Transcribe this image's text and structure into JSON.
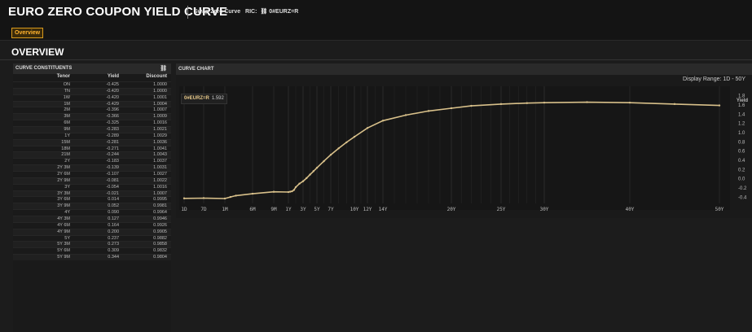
{
  "header": {
    "title": "EURO ZERO COUPON YIELD CURVE",
    "subtitle_prefix": "Swap Zero Curve",
    "ric_label": "RIC:",
    "ric_value": "0#EURZ=R"
  },
  "tabs": [
    {
      "label": "Overview",
      "active": true
    }
  ],
  "section_title": "OVERVIEW",
  "constituents": {
    "title": "CURVE CONSTITUENTS",
    "columns": [
      "Tenor",
      "Yield",
      "Discount"
    ],
    "rows": [
      [
        "ON",
        "-0.425",
        "1.0000"
      ],
      [
        "TN",
        "-0.420",
        "1.0000"
      ],
      [
        "1W",
        "-0.420",
        "1.0001"
      ],
      [
        "1M",
        "-0.429",
        "1.0004"
      ],
      [
        "2M",
        "-0.396",
        "1.0007"
      ],
      [
        "3M",
        "-0.366",
        "1.0009"
      ],
      [
        "6M",
        "-0.325",
        "1.0016"
      ],
      [
        "9M",
        "-0.283",
        "1.0021"
      ],
      [
        "1Y",
        "-0.289",
        "1.0029"
      ],
      [
        "15M",
        "-0.281",
        "1.0036"
      ],
      [
        "18M",
        "-0.271",
        "1.0041"
      ],
      [
        "21M",
        "-0.244",
        "1.0043"
      ],
      [
        "2Y",
        "-0.183",
        "1.0037"
      ],
      [
        "2Y 3M",
        "-0.139",
        "1.0031"
      ],
      [
        "2Y 6M",
        "-0.107",
        "1.0027"
      ],
      [
        "2Y 9M",
        "-0.081",
        "1.0022"
      ],
      [
        "3Y",
        "-0.054",
        "1.0016"
      ],
      [
        "3Y 3M",
        "-0.021",
        "1.0007"
      ],
      [
        "3Y 6M",
        "0.014",
        "0.9995"
      ],
      [
        "3Y 9M",
        "0.052",
        "0.9981"
      ],
      [
        "4Y",
        "0.090",
        "0.9964"
      ],
      [
        "4Y 3M",
        "0.127",
        "0.9946"
      ],
      [
        "4Y 6M",
        "0.164",
        "0.9926"
      ],
      [
        "4Y 9M",
        "0.200",
        "0.9905"
      ],
      [
        "5Y",
        "0.237",
        "0.9882"
      ],
      [
        "5Y 3M",
        "0.273",
        "0.9858"
      ],
      [
        "5Y 6M",
        "0.309",
        "0.9832"
      ],
      [
        "5Y 9M",
        "0.344",
        "0.9804"
      ]
    ]
  },
  "chart_panel": {
    "title": "CURVE CHART",
    "display_range": "Display Range: 1D - 50Y",
    "legend_name": "0#EURZ=R",
    "legend_value": "1.592"
  },
  "chart_data": {
    "type": "line",
    "ylabel": "Yield",
    "ylim": [
      -0.5,
      1.9
    ],
    "y_ticks": [
      "1.8",
      "1.6",
      "1.4",
      "1.2",
      "1.0",
      "0.8",
      "0.6",
      "0.4",
      "0.2",
      "0.0",
      "-0.2",
      "-0.4"
    ],
    "x_tick_labels": [
      "1D",
      "7D",
      "1M",
      "6M",
      "9M",
      "1Y",
      "3Y",
      "5Y",
      "7Y",
      "10Y",
      "12Y",
      "14Y",
      "20Y",
      "25Y",
      "30Y",
      "40Y",
      "50Y"
    ],
    "x_tick_years": [
      0.003,
      0.02,
      0.083,
      0.5,
      0.75,
      1,
      3,
      5,
      7,
      10,
      12,
      14,
      20,
      25,
      30,
      40,
      50
    ],
    "grid": true,
    "series": [
      {
        "name": "0#EURZ=R",
        "color": "#d8c08a",
        "x": [
          0.003,
          0.02,
          0.083,
          0.167,
          0.25,
          0.5,
          0.75,
          1,
          1.25,
          1.5,
          1.75,
          2,
          2.5,
          3,
          3.5,
          4,
          4.5,
          5,
          6,
          7,
          8,
          9,
          10,
          12,
          14,
          16,
          18,
          20,
          22,
          25,
          28,
          30,
          35,
          40,
          45,
          50
        ],
        "y": [
          -0.425,
          -0.42,
          -0.429,
          -0.396,
          -0.366,
          -0.325,
          -0.283,
          -0.289,
          -0.281,
          -0.271,
          -0.244,
          -0.183,
          -0.107,
          -0.054,
          0.014,
          0.09,
          0.164,
          0.237,
          0.38,
          0.52,
          0.66,
          0.79,
          0.91,
          1.1,
          1.26,
          1.38,
          1.47,
          1.53,
          1.58,
          1.62,
          1.64,
          1.65,
          1.66,
          1.65,
          1.62,
          1.59
        ]
      }
    ]
  }
}
